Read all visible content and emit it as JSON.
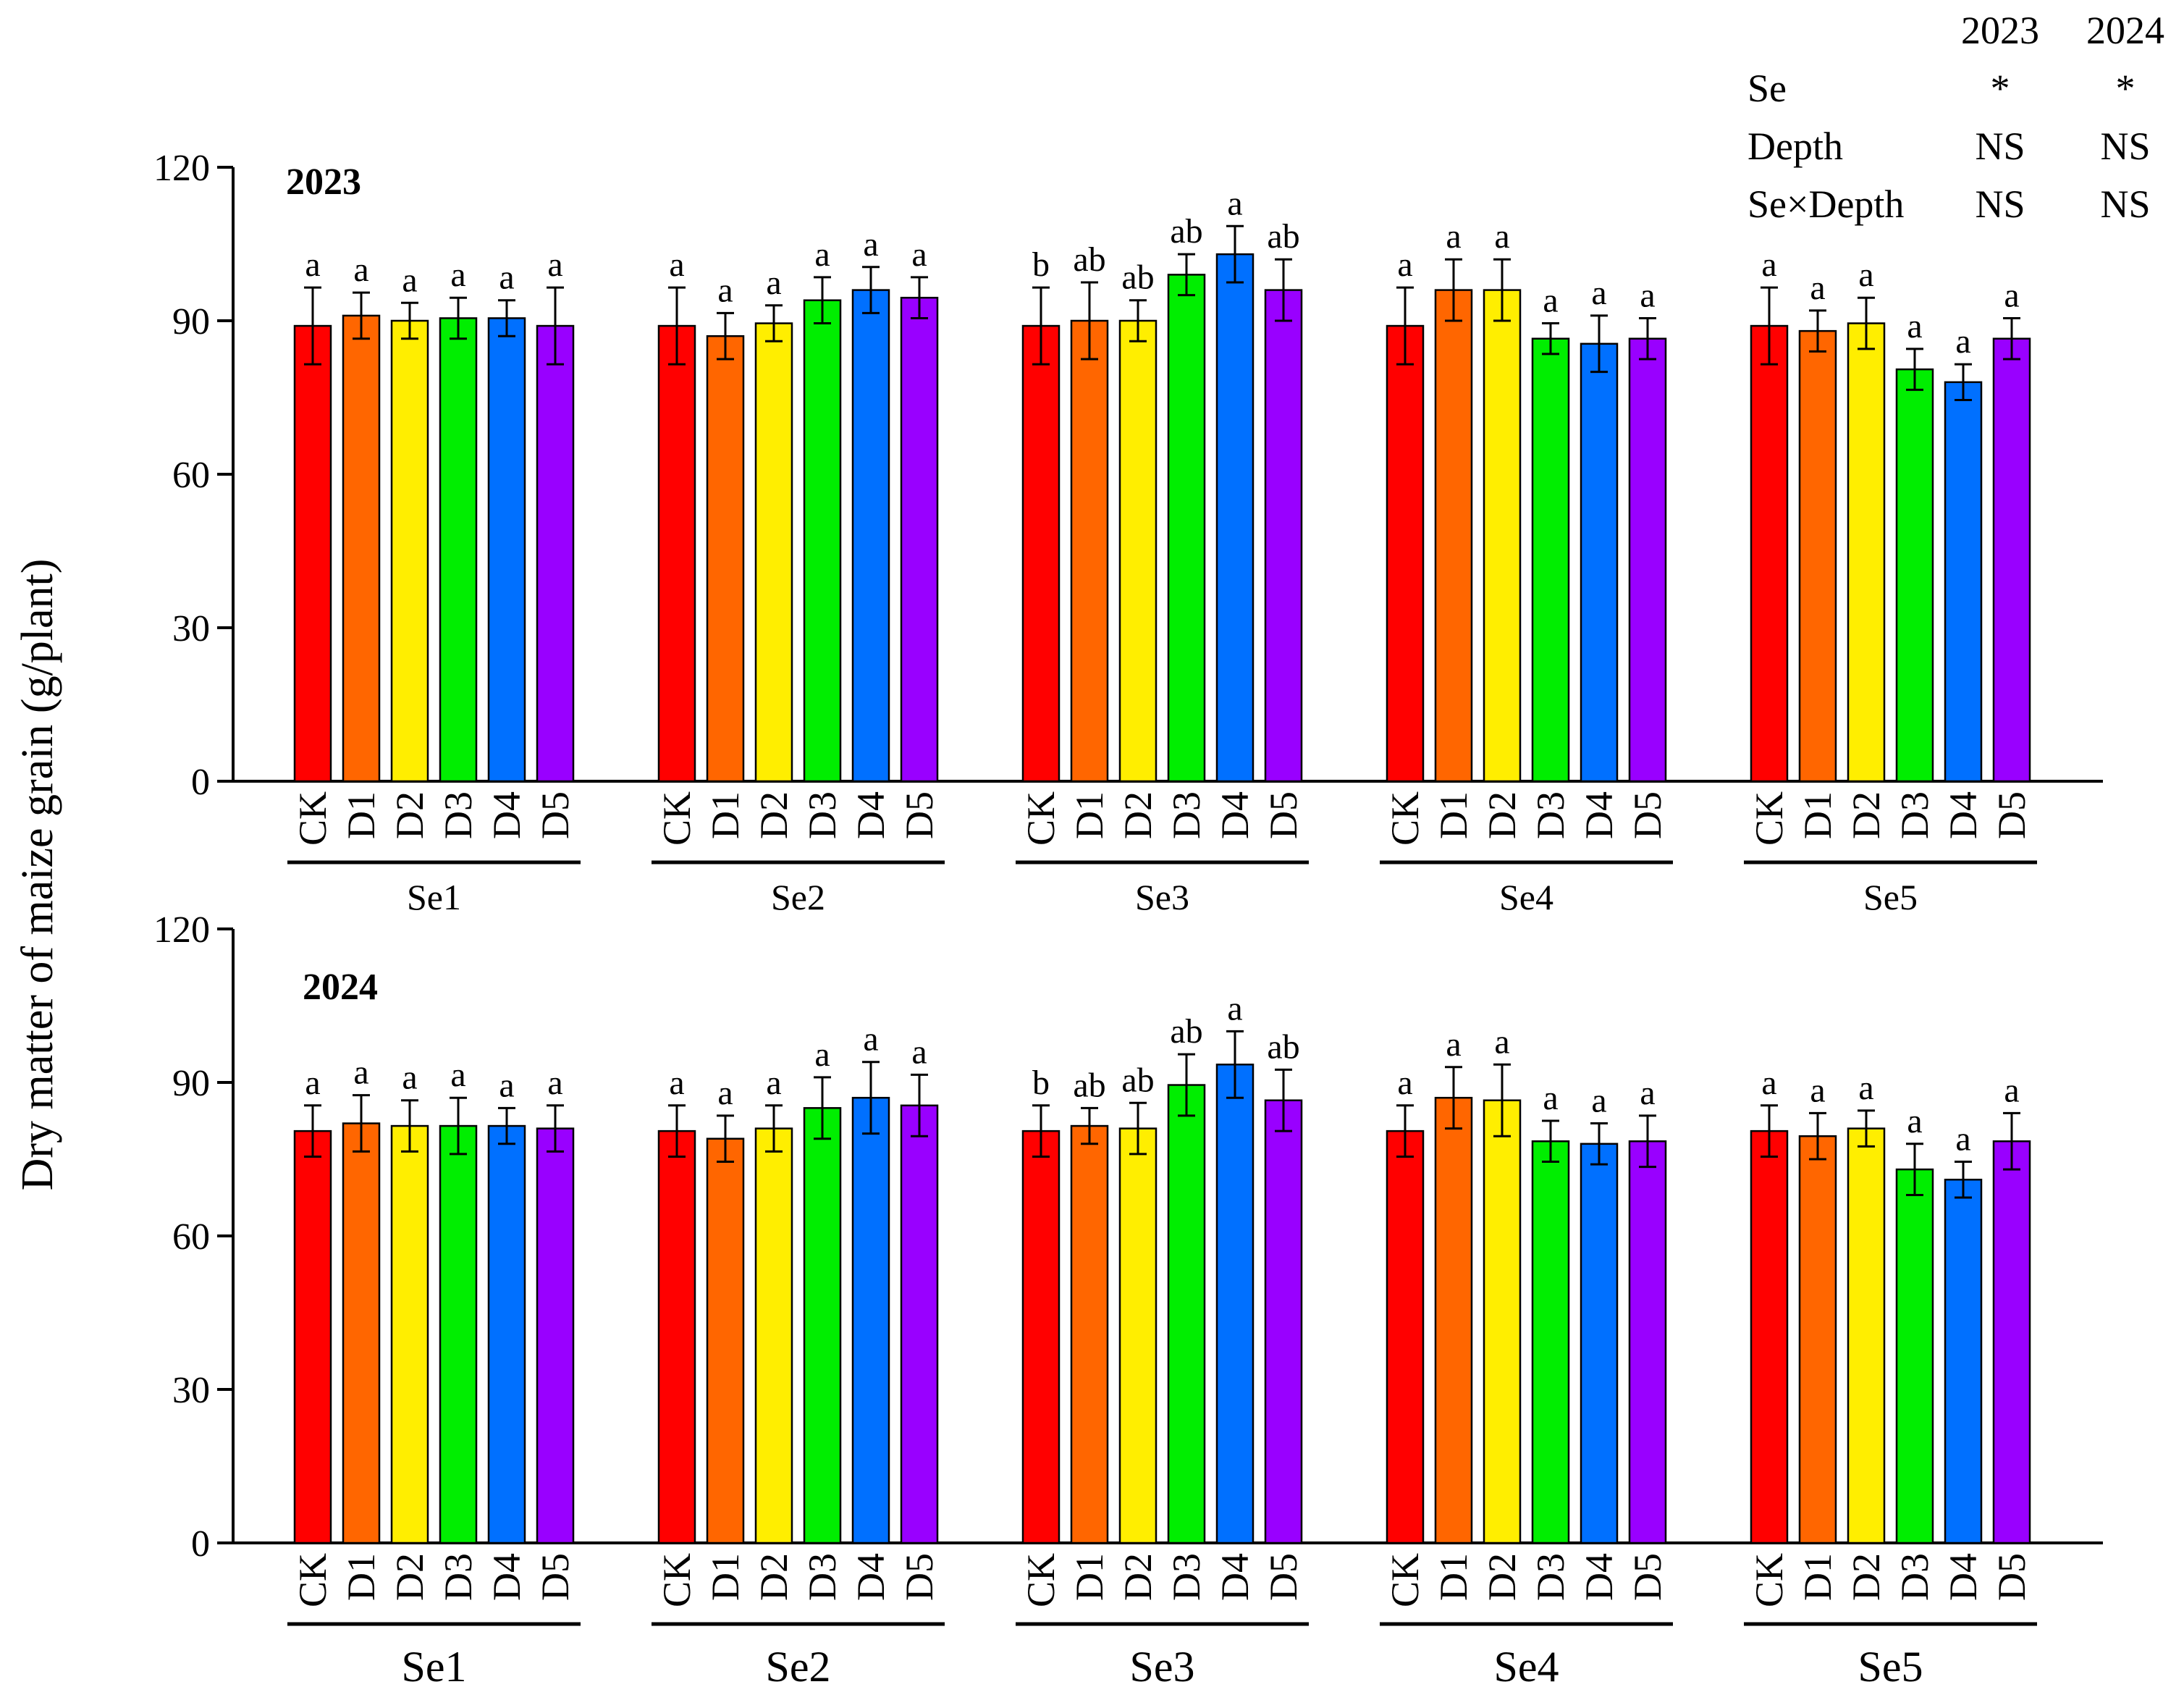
{
  "chart_data": {
    "type": "bar",
    "ylabel": "Dry matter of maize grain (g/plant)",
    "ylim": [
      0,
      120
    ],
    "yticks": [
      0,
      30,
      60,
      90,
      120
    ],
    "groups": [
      "Se1",
      "Se2",
      "Se3",
      "Se4",
      "Se5"
    ],
    "categories": [
      "CK",
      "D1",
      "D2",
      "D3",
      "D4",
      "D5"
    ],
    "series_colors": [
      "#ff0000",
      "#ff6600",
      "#ffee00",
      "#00ee00",
      "#0070ff",
      "#9900ff"
    ],
    "panels": [
      {
        "title": "2023",
        "values": [
          [
            89,
            91,
            90,
            90.5,
            90.5,
            89
          ],
          [
            89,
            87,
            89.5,
            94,
            96,
            94.5
          ],
          [
            89,
            90,
            90,
            99,
            103,
            96
          ],
          [
            89,
            96,
            96,
            86.5,
            85.5,
            86.5
          ],
          [
            89,
            88,
            89.5,
            80.5,
            78,
            86.5
          ]
        ],
        "errors": [
          [
            7.5,
            4.5,
            3.5,
            4,
            3.5,
            7.5
          ],
          [
            7.5,
            4.5,
            3.5,
            4.5,
            4.5,
            4
          ],
          [
            7.5,
            7.5,
            4,
            4,
            5.5,
            6
          ],
          [
            7.5,
            6,
            6,
            3,
            5.5,
            4
          ],
          [
            7.5,
            4,
            5,
            4,
            3.5,
            4
          ]
        ],
        "letters": [
          [
            "a",
            "a",
            "a",
            "a",
            "a",
            "a"
          ],
          [
            "a",
            "a",
            "a",
            "a",
            "a",
            "a"
          ],
          [
            "b",
            "ab",
            "ab",
            "ab",
            "a",
            "ab"
          ],
          [
            "a",
            "a",
            "a",
            "a",
            "a",
            "a"
          ],
          [
            "a",
            "a",
            "a",
            "a",
            "a",
            "a"
          ]
        ]
      },
      {
        "title": "2024",
        "values": [
          [
            80.5,
            82,
            81.5,
            81.5,
            81.5,
            81
          ],
          [
            80.5,
            79,
            81,
            85,
            87,
            85.5
          ],
          [
            80.5,
            81.5,
            81,
            89.5,
            93.5,
            86.5
          ],
          [
            80.5,
            87,
            86.5,
            78.5,
            78,
            78.5
          ],
          [
            80.5,
            79.5,
            81,
            73,
            71,
            78.5
          ]
        ],
        "errors": [
          [
            5,
            5.5,
            5,
            5.5,
            3.5,
            4.5
          ],
          [
            5,
            4.5,
            4.5,
            6,
            7,
            6
          ],
          [
            5,
            3.5,
            5,
            6,
            6.5,
            6
          ],
          [
            5,
            6,
            7,
            4,
            4,
            5
          ],
          [
            5,
            4.5,
            3.5,
            5,
            3.5,
            5.5
          ]
        ],
        "letters": [
          [
            "a",
            "a",
            "a",
            "a",
            "a",
            "a"
          ],
          [
            "a",
            "a",
            "a",
            "a",
            "a",
            "a"
          ],
          [
            "b",
            "ab",
            "ab",
            "ab",
            "a",
            "ab"
          ],
          [
            "a",
            "a",
            "a",
            "a",
            "a",
            "a"
          ],
          [
            "a",
            "a",
            "a",
            "a",
            "a",
            "a"
          ]
        ]
      }
    ],
    "anova": {
      "years": [
        "2023",
        "2024"
      ],
      "rows": [
        {
          "factor": "Se",
          "values": [
            "*",
            "*"
          ]
        },
        {
          "factor": "Depth",
          "values": [
            "NS",
            "NS"
          ]
        },
        {
          "factor": "Se×Depth",
          "values": [
            "NS",
            "NS"
          ]
        }
      ]
    }
  }
}
